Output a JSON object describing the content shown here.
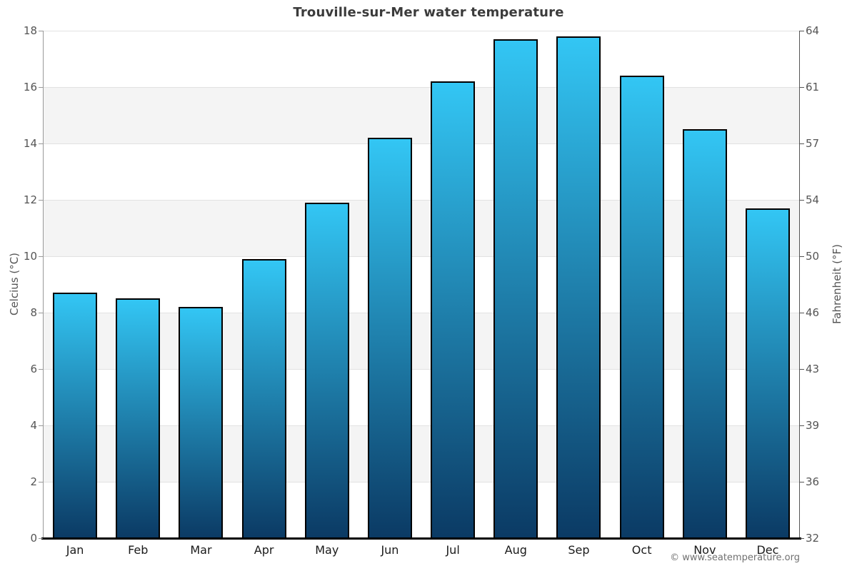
{
  "title": "Trouville-sur-Mer water temperature",
  "footer": "© www.seatemperature.org",
  "chart_data": {
    "type": "bar",
    "title": "Trouville-sur-Mer water temperature",
    "categories": [
      "Jan",
      "Feb",
      "Mar",
      "Apr",
      "May",
      "Jun",
      "Jul",
      "Aug",
      "Sep",
      "Oct",
      "Nov",
      "Dec"
    ],
    "values": [
      8.7,
      8.5,
      8.2,
      9.9,
      11.9,
      14.2,
      16.2,
      17.7,
      17.8,
      16.4,
      14.5,
      11.7
    ],
    "value_unit": "°C",
    "ylabel_left": "Celcius (°C)",
    "ylabel_right": "Fahrenheit (°F)",
    "xlabel": "",
    "y_left_ticks": [
      0,
      2,
      4,
      6,
      8,
      10,
      12,
      14,
      16,
      18
    ],
    "y_right_ticks": [
      32,
      36,
      39,
      43,
      46,
      50,
      54,
      57,
      61,
      64
    ],
    "ylim": [
      0,
      18
    ],
    "legend_position": "none",
    "grid": "horizontal gridlines every 2°C with alternating white/gray bands",
    "colors": {
      "bar_gradient_top": "#33c6f4",
      "bar_gradient_bottom": "#0b3a64",
      "bar_border": "#000000",
      "band_gray": "#f4f4f4",
      "band_white": "#ffffff",
      "gridline": "#e2e2e2",
      "axis_left": "#999999",
      "axis_right": "#555555",
      "baseline": "#000000",
      "title_text": "#3b3b3b",
      "tick_text": "#555555",
      "month_text": "#1a1a1a",
      "footer_text": "#707070"
    }
  }
}
